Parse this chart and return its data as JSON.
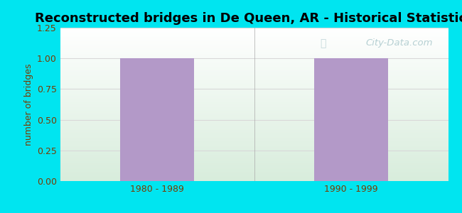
{
  "title": "Reconstructed bridges in De Queen, AR - Historical Statistics",
  "categories": [
    "1980 - 1989",
    "1990 - 1999"
  ],
  "values": [
    1,
    1
  ],
  "bar_color": "#b399c8",
  "bar_width": 0.38,
  "ylabel": "number of bridges",
  "ylim": [
    0,
    1.25
  ],
  "yticks": [
    0,
    0.25,
    0.5,
    0.75,
    1,
    1.25
  ],
  "background_outer": "#00e5f0",
  "background_inner_top": "#ffffff",
  "background_inner_bottom": "#d8eddc",
  "grid_color": "#d8d8d8",
  "title_fontsize": 13,
  "label_fontsize": 9,
  "tick_fontsize": 9,
  "tick_color": "#7a3b00",
  "label_color": "#7a3b00",
  "title_color": "#000000",
  "watermark_text": "City-Data.com",
  "xlim": [
    -0.5,
    1.5
  ]
}
